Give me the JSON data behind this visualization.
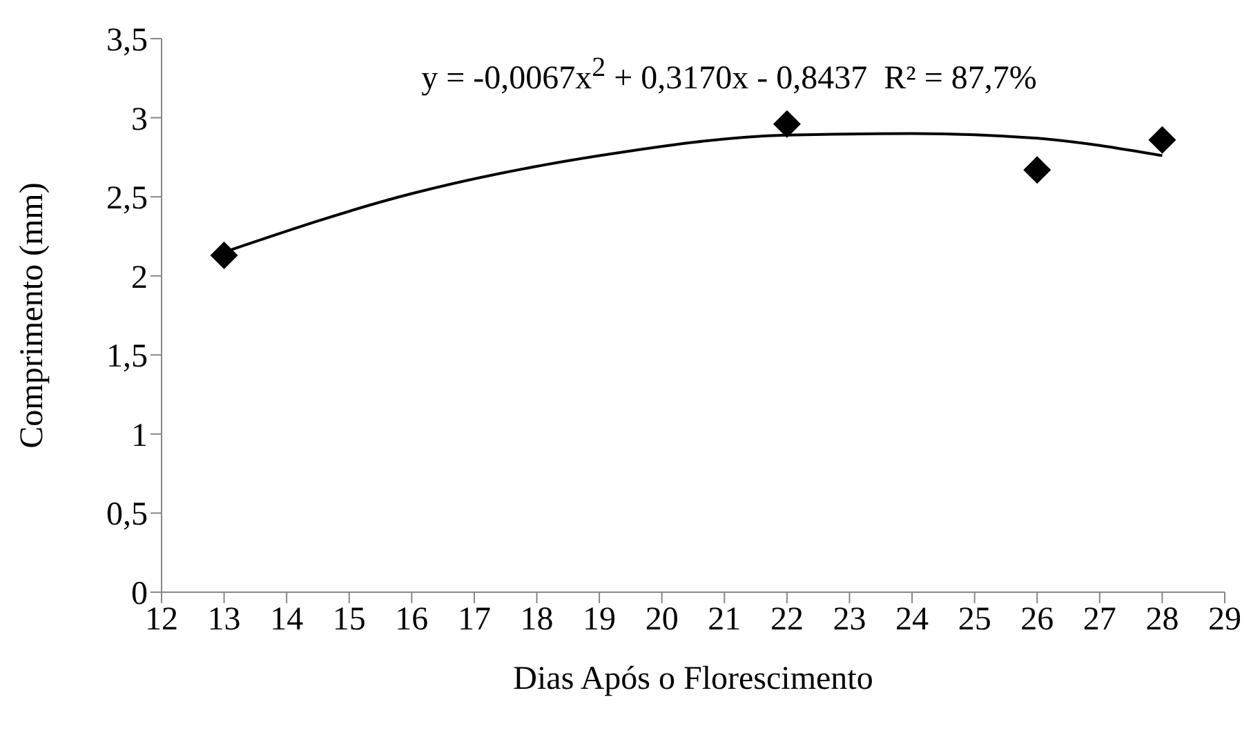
{
  "chart_data": {
    "type": "scatter",
    "xlabel": "Dias Após o Florescimento",
    "ylabel": "Comprimento (mm)",
    "xlim": [
      12,
      29
    ],
    "xticks": [
      12,
      13,
      14,
      15,
      16,
      17,
      18,
      19,
      20,
      21,
      22,
      23,
      24,
      25,
      26,
      27,
      28,
      29
    ],
    "ylim": [
      0,
      3.5
    ],
    "yticks": [
      {
        "value": 0,
        "label": "0"
      },
      {
        "value": 0.5,
        "label": "0,5"
      },
      {
        "value": 1,
        "label": "1"
      },
      {
        "value": 1.5,
        "label": "1,5"
      },
      {
        "value": 2,
        "label": "2"
      },
      {
        "value": 2.5,
        "label": "2,5"
      },
      {
        "value": 3,
        "label": "3"
      },
      {
        "value": 3.5,
        "label": "3,5"
      }
    ],
    "grid": false,
    "legend": false,
    "marker": "diamond",
    "annotations": [
      "y = -0,0067x$^{2}$ + 0,3170x - 0,8437  R² = 87,7%"
    ],
    "series": [
      {
        "color": "#000000",
        "x": [
          13,
          22,
          26,
          28
        ],
        "values": [
          2.13,
          2.96,
          2.67,
          2.86
        ]
      },
      {
        "type": "line",
        "color": "#000000",
        "marker": "none",
        "x": [
          13,
          16,
          19,
          22,
          24,
          26,
          28
        ],
        "values": [
          2.15,
          2.52,
          2.76,
          2.89,
          2.9,
          2.87,
          2.76
        ]
      }
    ]
  }
}
